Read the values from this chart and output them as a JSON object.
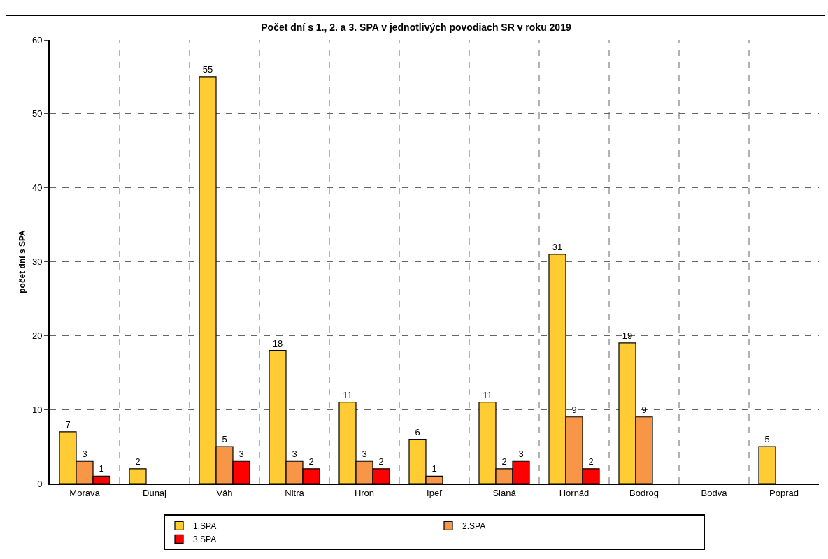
{
  "chart_data": {
    "type": "bar",
    "title": "Počet dní s 1., 2. a 3. SPA v jednotlivých povodiach SR v roku 2019",
    "ylabel": "počet dní s SPA",
    "categories": [
      "Morava",
      "Dunaj",
      "Váh",
      "Nitra",
      "Hron",
      "Ipeľ",
      "Slaná",
      "Hornád",
      "Bodrog",
      "Bodva",
      "Poprad"
    ],
    "series": [
      {
        "name": "1.SPA",
        "color": "#ffcc33",
        "values": [
          7,
          2,
          55,
          18,
          11,
          6,
          11,
          31,
          19,
          null,
          5
        ]
      },
      {
        "name": "2.SPA",
        "color": "#f79646",
        "values": [
          3,
          null,
          5,
          3,
          3,
          1,
          2,
          9,
          9,
          null,
          null
        ]
      },
      {
        "name": "3.SPA",
        "color": "#ff0000",
        "values": [
          1,
          null,
          3,
          2,
          2,
          null,
          3,
          2,
          null,
          null,
          null
        ]
      }
    ],
    "ylim": [
      0,
      60
    ],
    "yticks": [
      0,
      10,
      20,
      30,
      40,
      50,
      60
    ],
    "grid": true,
    "legend": "bottom",
    "data_labels": true
  }
}
